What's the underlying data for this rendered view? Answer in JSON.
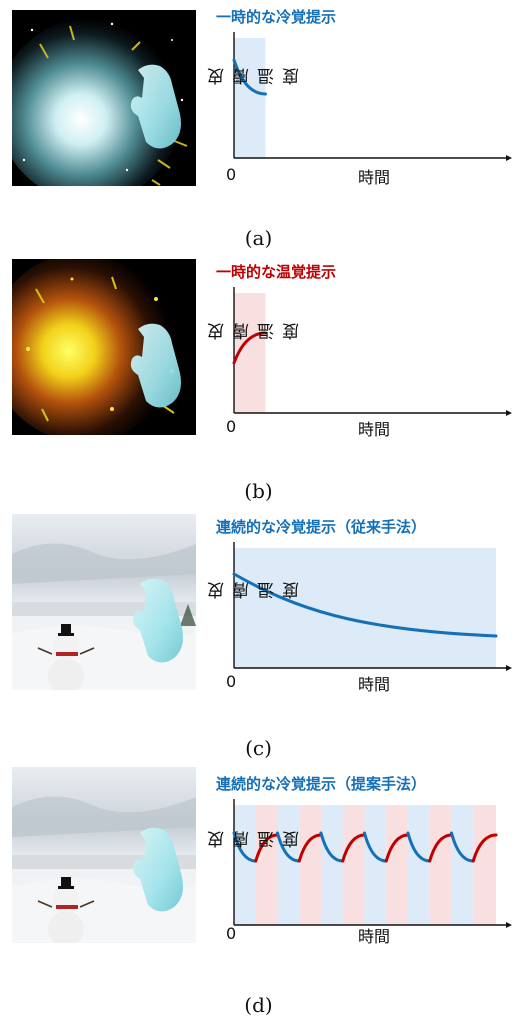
{
  "colors": {
    "cold": "#1570b8",
    "warm": "#c00000",
    "cold_band": "#d6e8f6",
    "warm_band": "#f8dada"
  },
  "axis": {
    "ylabel": "皮膚温度",
    "xlabel": "時間",
    "origin": "0"
  },
  "panels": [
    {
      "id": "a",
      "caption": "(a)",
      "title": "一時的な冷覚提示",
      "scene": "cold-burst-and-hand",
      "chart_data": {
        "type": "line",
        "description_mode": "cold",
        "segments": [
          {
            "kind": "cold",
            "start": 0.0,
            "end": 0.12
          }
        ]
      }
    },
    {
      "id": "b",
      "caption": "(b)",
      "title": "一時的な温覚提示",
      "scene": "warm-burst-and-hand",
      "chart_data": {
        "type": "line",
        "segments": [
          {
            "kind": "warm",
            "start": 0.0,
            "end": 0.12
          }
        ]
      }
    },
    {
      "id": "c",
      "caption": "(c)",
      "title": "連続的な冷覚提示（従来手法）",
      "scene": "snow-scene-and-hand",
      "chart_data": {
        "type": "line",
        "segments": [
          {
            "kind": "cold-long",
            "start": 0.0,
            "end": 1.0
          }
        ]
      }
    },
    {
      "id": "d",
      "caption": "(d)",
      "title": "連続的な冷覚提示（提案手法）",
      "scene": "snow-scene-and-hand",
      "chart_data": {
        "type": "line",
        "segments": [
          {
            "kind": "cold",
            "start": 0.0,
            "end": 0.083
          },
          {
            "kind": "warm",
            "start": 0.083,
            "end": 0.166
          },
          {
            "kind": "cold",
            "start": 0.166,
            "end": 0.249
          },
          {
            "kind": "warm",
            "start": 0.249,
            "end": 0.332
          },
          {
            "kind": "cold",
            "start": 0.332,
            "end": 0.415
          },
          {
            "kind": "warm",
            "start": 0.415,
            "end": 0.498
          },
          {
            "kind": "cold",
            "start": 0.498,
            "end": 0.581
          },
          {
            "kind": "warm",
            "start": 0.581,
            "end": 0.664
          },
          {
            "kind": "cold",
            "start": 0.664,
            "end": 0.747
          },
          {
            "kind": "warm",
            "start": 0.747,
            "end": 0.83
          },
          {
            "kind": "cold",
            "start": 0.83,
            "end": 0.913
          },
          {
            "kind": "warm",
            "start": 0.913,
            "end": 1.0
          }
        ]
      }
    }
  ]
}
